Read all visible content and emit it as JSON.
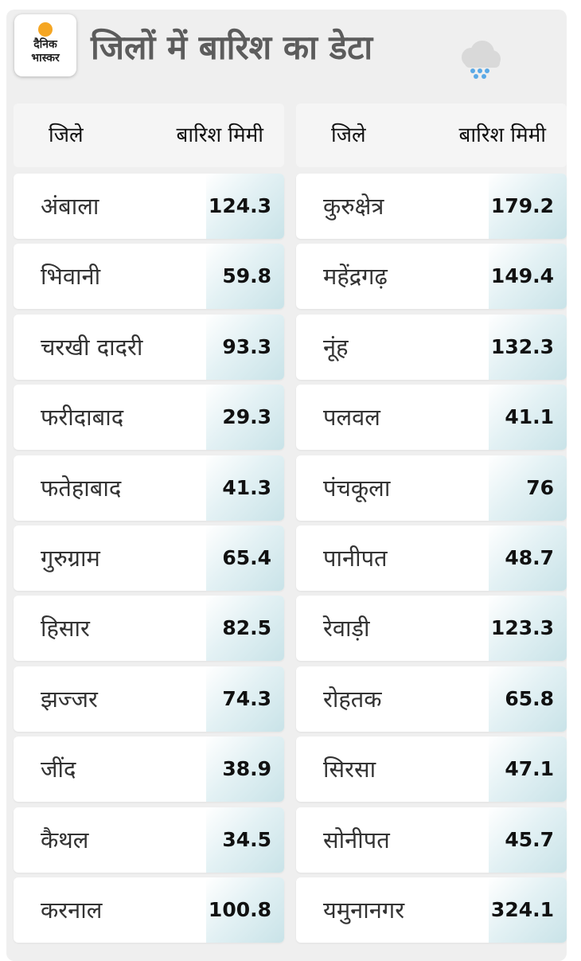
{
  "logo": {
    "line1": "दैनिक",
    "line2": "भास्कर"
  },
  "title": "जिलों में बारिश का डेटा",
  "header": {
    "district": "जिले",
    "rain": "बारिश मिमी"
  },
  "left": [
    {
      "name": "अंबाला",
      "value": "124.3"
    },
    {
      "name": "भिवानी",
      "value": "59.8"
    },
    {
      "name": "चरखी दादरी",
      "value": "93.3"
    },
    {
      "name": "फरीदाबाद",
      "value": "29.3"
    },
    {
      "name": "फतेहाबाद",
      "value": "41.3"
    },
    {
      "name": "गुरुग्राम",
      "value": "65.4"
    },
    {
      "name": "हिसार",
      "value": "82.5"
    },
    {
      "name": "झज्जर",
      "value": "74.3"
    },
    {
      "name": "जींद",
      "value": "38.9"
    },
    {
      "name": "कैथल",
      "value": "34.5"
    },
    {
      "name": "करनाल",
      "value": "100.8"
    }
  ],
  "right": [
    {
      "name": "कुरुक्षेत्र",
      "value": "179.2"
    },
    {
      "name": "महेंद्रगढ़",
      "value": "149.4"
    },
    {
      "name": "नूंह",
      "value": "132.3"
    },
    {
      "name": "पलवल",
      "value": "41.1"
    },
    {
      "name": "पंचकूला",
      "value": "76"
    },
    {
      "name": "पानीपत",
      "value": "48.7"
    },
    {
      "name": "रेवाड़ी",
      "value": "123.3"
    },
    {
      "name": "रोहतक",
      "value": "65.8"
    },
    {
      "name": "सिरसा",
      "value": "47.1"
    },
    {
      "name": "सोनीपत",
      "value": "45.7"
    },
    {
      "name": "यमुनानगर",
      "value": "324.1"
    }
  ],
  "icons": {
    "logo_mark": "sun-icon",
    "weather": "rain-cloud-icon"
  },
  "colors": {
    "title": "#5c5c5c",
    "value_bg": "#c9e3e8",
    "logo_accent": "#f5a623",
    "rain_drops": "#5aa9e6"
  }
}
